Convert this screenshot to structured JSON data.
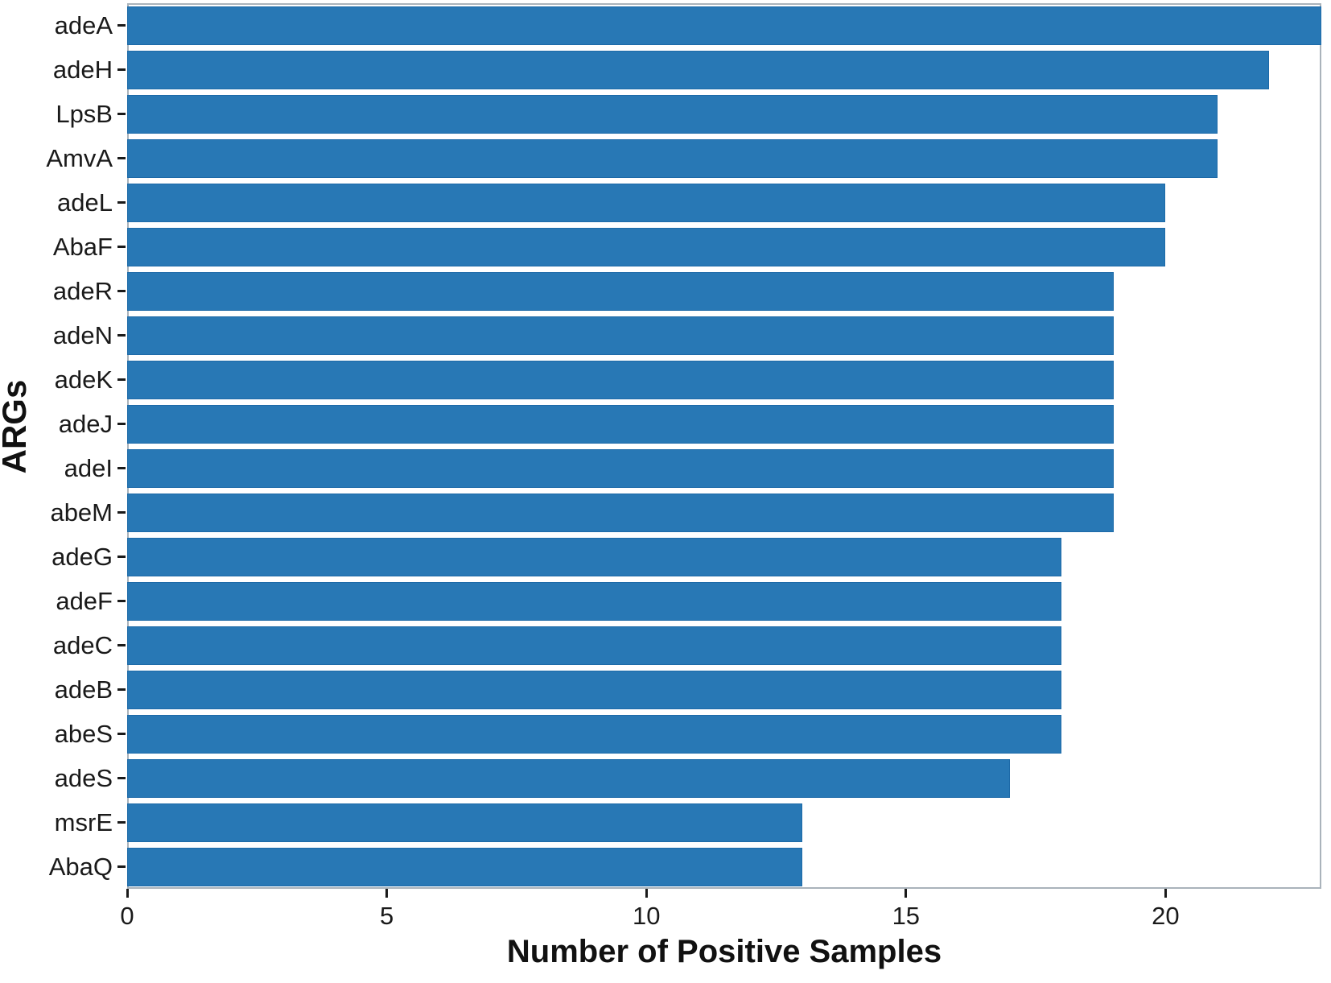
{
  "chart_data": {
    "type": "bar",
    "orientation": "horizontal",
    "xlabel": "Number of Positive Samples",
    "ylabel": "ARGs",
    "categories": [
      "adeA",
      "adeH",
      "LpsB",
      "AmvA",
      "adeL",
      "AbaF",
      "adeR",
      "adeN",
      "adeK",
      "adeJ",
      "adeI",
      "abeM",
      "adeG",
      "adeF",
      "adeC",
      "adeB",
      "abeS",
      "adeS",
      "msrE",
      "AbaQ"
    ],
    "values": [
      23,
      22,
      21,
      21,
      20,
      20,
      19,
      19,
      19,
      19,
      19,
      19,
      18,
      18,
      18,
      18,
      18,
      17,
      13,
      13
    ],
    "xlim": [
      0,
      23
    ],
    "xticks": [
      0,
      5,
      10,
      15,
      20
    ],
    "xtick_labels": [
      "0",
      "5",
      "10",
      "15",
      "20"
    ],
    "grid": false,
    "legend": null,
    "bar_color": "#2878b5",
    "bar_border_color": "#1d6aa8",
    "panel_border_color": "#aab3bb",
    "tick_color": "#1a1a1a",
    "text_color": "#1a1a1a"
  }
}
